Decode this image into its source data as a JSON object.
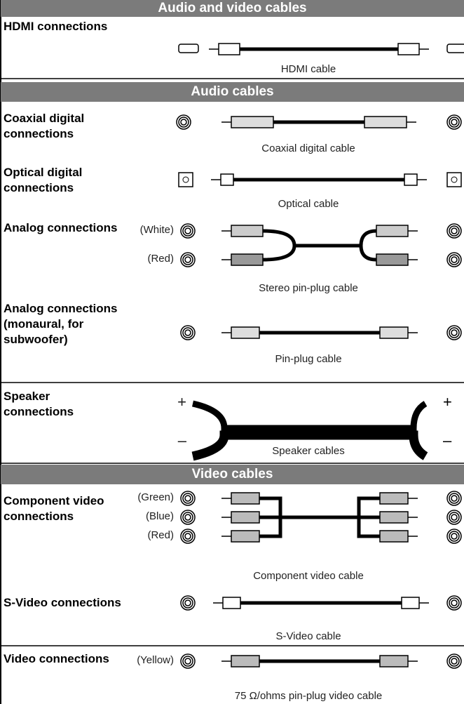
{
  "sections": [
    {
      "title": "Audio and video cables",
      "rows": [
        {
          "label": "HDMI connections",
          "caption": "HDMI cable"
        }
      ]
    },
    {
      "title": "Audio cables",
      "rows": [
        {
          "label": "Coaxial digital connections",
          "caption": "Coaxial digital cable"
        },
        {
          "label": "Optical digital connections",
          "caption": "Optical cable"
        },
        {
          "label": "Analog connections",
          "side_labels": [
            "(White)",
            "(Red)"
          ],
          "caption": "Stereo pin-plug cable"
        },
        {
          "label": "Analog connections (monaural, for subwoofer)",
          "caption": "Pin-plug cable"
        },
        {
          "label": "Speaker connections",
          "side_labels": [
            "+",
            "–"
          ],
          "caption": "Speaker cables"
        }
      ]
    },
    {
      "title": "Video cables",
      "rows": [
        {
          "label": "Component video connections",
          "side_labels": [
            "(Green)",
            "(Blue)",
            "(Red)"
          ],
          "caption": "Component video cable"
        },
        {
          "label": "S-Video connections",
          "caption": "S-Video cable"
        },
        {
          "label": "Video connections",
          "side_labels": [
            "(Yellow)"
          ],
          "caption": "75 Ω/ohms pin-plug video cable"
        }
      ]
    }
  ]
}
